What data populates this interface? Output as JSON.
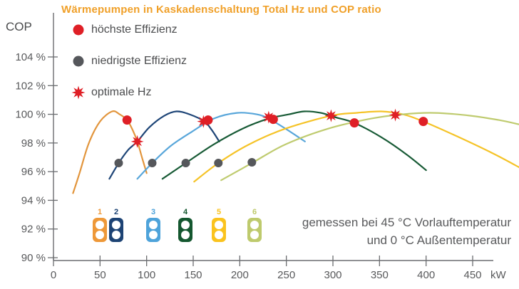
{
  "title": "Wärmepumpen in Kaskadenschaltung Total Hz und COP ratio",
  "y_axis_label": "COP",
  "legend": [
    {
      "type": "dot",
      "color": "#DF1F26",
      "label": "höchste Effizienz"
    },
    {
      "type": "dot",
      "color": "#55575B",
      "label": "niedrigste Effizienz"
    },
    {
      "type": "star",
      "color": "#DF1F26",
      "label": "optimale Hz"
    }
  ],
  "note": {
    "line1": "gemessen bei 45 °C Vorlauftemperatur",
    "line2": "und 0 °C Außentemperatur"
  },
  "pumps": [
    {
      "number": "1",
      "color": "#EE9838"
    },
    {
      "number": "2",
      "color": "#1D4374"
    },
    {
      "number": "3",
      "color": "#4EA3DA"
    },
    {
      "number": "4",
      "color": "#14572F"
    },
    {
      "number": "5",
      "color": "#FAC31E"
    },
    {
      "number": "6",
      "color": "#BECA6D"
    }
  ],
  "chart_data": {
    "type": "line",
    "title": "Wärmepumpen in Kaskadenschaltung Total Hz und COP ratio",
    "xlabel": "kW",
    "ylabel": "COP",
    "x_ticks": [
      0,
      50,
      100,
      150,
      200,
      250,
      300,
      350,
      400,
      450
    ],
    "y_ticks": [
      104,
      102,
      100,
      98,
      96,
      94,
      92,
      90
    ],
    "y_tick_suffix": " %",
    "xlim": [
      0,
      472
    ],
    "ylim": [
      90,
      107
    ],
    "grid": false,
    "legend_position": "top-left",
    "series": [
      {
        "name": "Wärmepumpe 1",
        "color": "#E2953C",
        "points": [
          [
            21,
            94.5
          ],
          [
            28,
            95.9
          ],
          [
            38,
            98.0
          ],
          [
            50,
            99.5
          ],
          [
            63,
            100.2
          ],
          [
            71,
            100.0
          ],
          [
            79,
            99.6
          ],
          [
            85,
            98.9
          ],
          [
            90,
            98.1
          ],
          [
            95,
            97.0
          ],
          [
            100,
            95.9
          ]
        ]
      },
      {
        "name": "Wärmepumpe 2",
        "color": "#1E4577",
        "points": [
          [
            60,
            95.5
          ],
          [
            70,
            96.6
          ],
          [
            80,
            97.5
          ],
          [
            90,
            98.1
          ],
          [
            103,
            99.1
          ],
          [
            119,
            99.9
          ],
          [
            132,
            100.2
          ],
          [
            146,
            100.0
          ],
          [
            162,
            99.5
          ],
          [
            170,
            98.9
          ],
          [
            178,
            98.1
          ]
        ]
      },
      {
        "name": "Wärmepumpe 3",
        "color": "#58A6DA",
        "points": [
          [
            90,
            95.5
          ],
          [
            106,
            96.6
          ],
          [
            126,
            97.8
          ],
          [
            149,
            98.8
          ],
          [
            172,
            99.7
          ],
          [
            197,
            100.1
          ],
          [
            218,
            100.0
          ],
          [
            231,
            99.7
          ],
          [
            249,
            99.0
          ],
          [
            270,
            98.1
          ]
        ]
      },
      {
        "name": "Wärmepumpe 4",
        "color": "#175A35",
        "points": [
          [
            117,
            95.5
          ],
          [
            142,
            96.6
          ],
          [
            172,
            97.9
          ],
          [
            203,
            99.0
          ],
          [
            231,
            99.7
          ],
          [
            253,
            100.0
          ],
          [
            269,
            100.2
          ],
          [
            287,
            100.1
          ],
          [
            302,
            99.8
          ],
          [
            323,
            99.4
          ],
          [
            352,
            98.4
          ],
          [
            379,
            97.2
          ],
          [
            400,
            96.1
          ]
        ]
      },
      {
        "name": "Wärmepumpe 5",
        "color": "#F5C327",
        "points": [
          [
            151,
            95.3
          ],
          [
            177,
            96.6
          ],
          [
            210,
            97.9
          ],
          [
            249,
            99.0
          ],
          [
            298,
            99.9
          ],
          [
            325,
            100.1
          ],
          [
            352,
            100.2
          ],
          [
            375,
            100.0
          ],
          [
            397,
            99.5
          ],
          [
            432,
            98.5
          ],
          [
            471,
            97.3
          ],
          [
            500,
            96.3
          ]
        ]
      },
      {
        "name": "Wärmepumpe 6",
        "color": "#BFCB6F",
        "points": [
          [
            180,
            95.4
          ],
          [
            213,
            96.6
          ],
          [
            249,
            97.9
          ],
          [
            295,
            99.0
          ],
          [
            341,
            99.7
          ],
          [
            375,
            100.0
          ],
          [
            409,
            100.1
          ],
          [
            448,
            99.9
          ],
          [
            478,
            99.6
          ],
          [
            500,
            99.3
          ]
        ]
      }
    ],
    "markers": {
      "hoechste_effizienz": {
        "label": "höchste Effizienz",
        "color": "#DF1F26",
        "points": [
          [
            79,
            99.6
          ],
          [
            166,
            99.6
          ],
          [
            236,
            99.65
          ],
          [
            323,
            99.4
          ],
          [
            397,
            99.5
          ]
        ]
      },
      "niedrigste_effizienz": {
        "label": "niedrigste Effizienz",
        "color": "#55575B",
        "points": [
          [
            70,
            96.6
          ],
          [
            106,
            96.6
          ],
          [
            142,
            96.6
          ],
          [
            177,
            96.6
          ],
          [
            213,
            96.65
          ]
        ]
      },
      "optimale_hz": {
        "label": "optimale Hz",
        "color": "#DF1F26",
        "points": [
          [
            90,
            98.1
          ],
          [
            161,
            99.5
          ],
          [
            231,
            99.8
          ],
          [
            298,
            99.9
          ],
          [
            367,
            99.95
          ]
        ]
      }
    },
    "note": "gemessen bei 45 °C Vorlauftemperatur und 0 °C Außentemperatur"
  }
}
